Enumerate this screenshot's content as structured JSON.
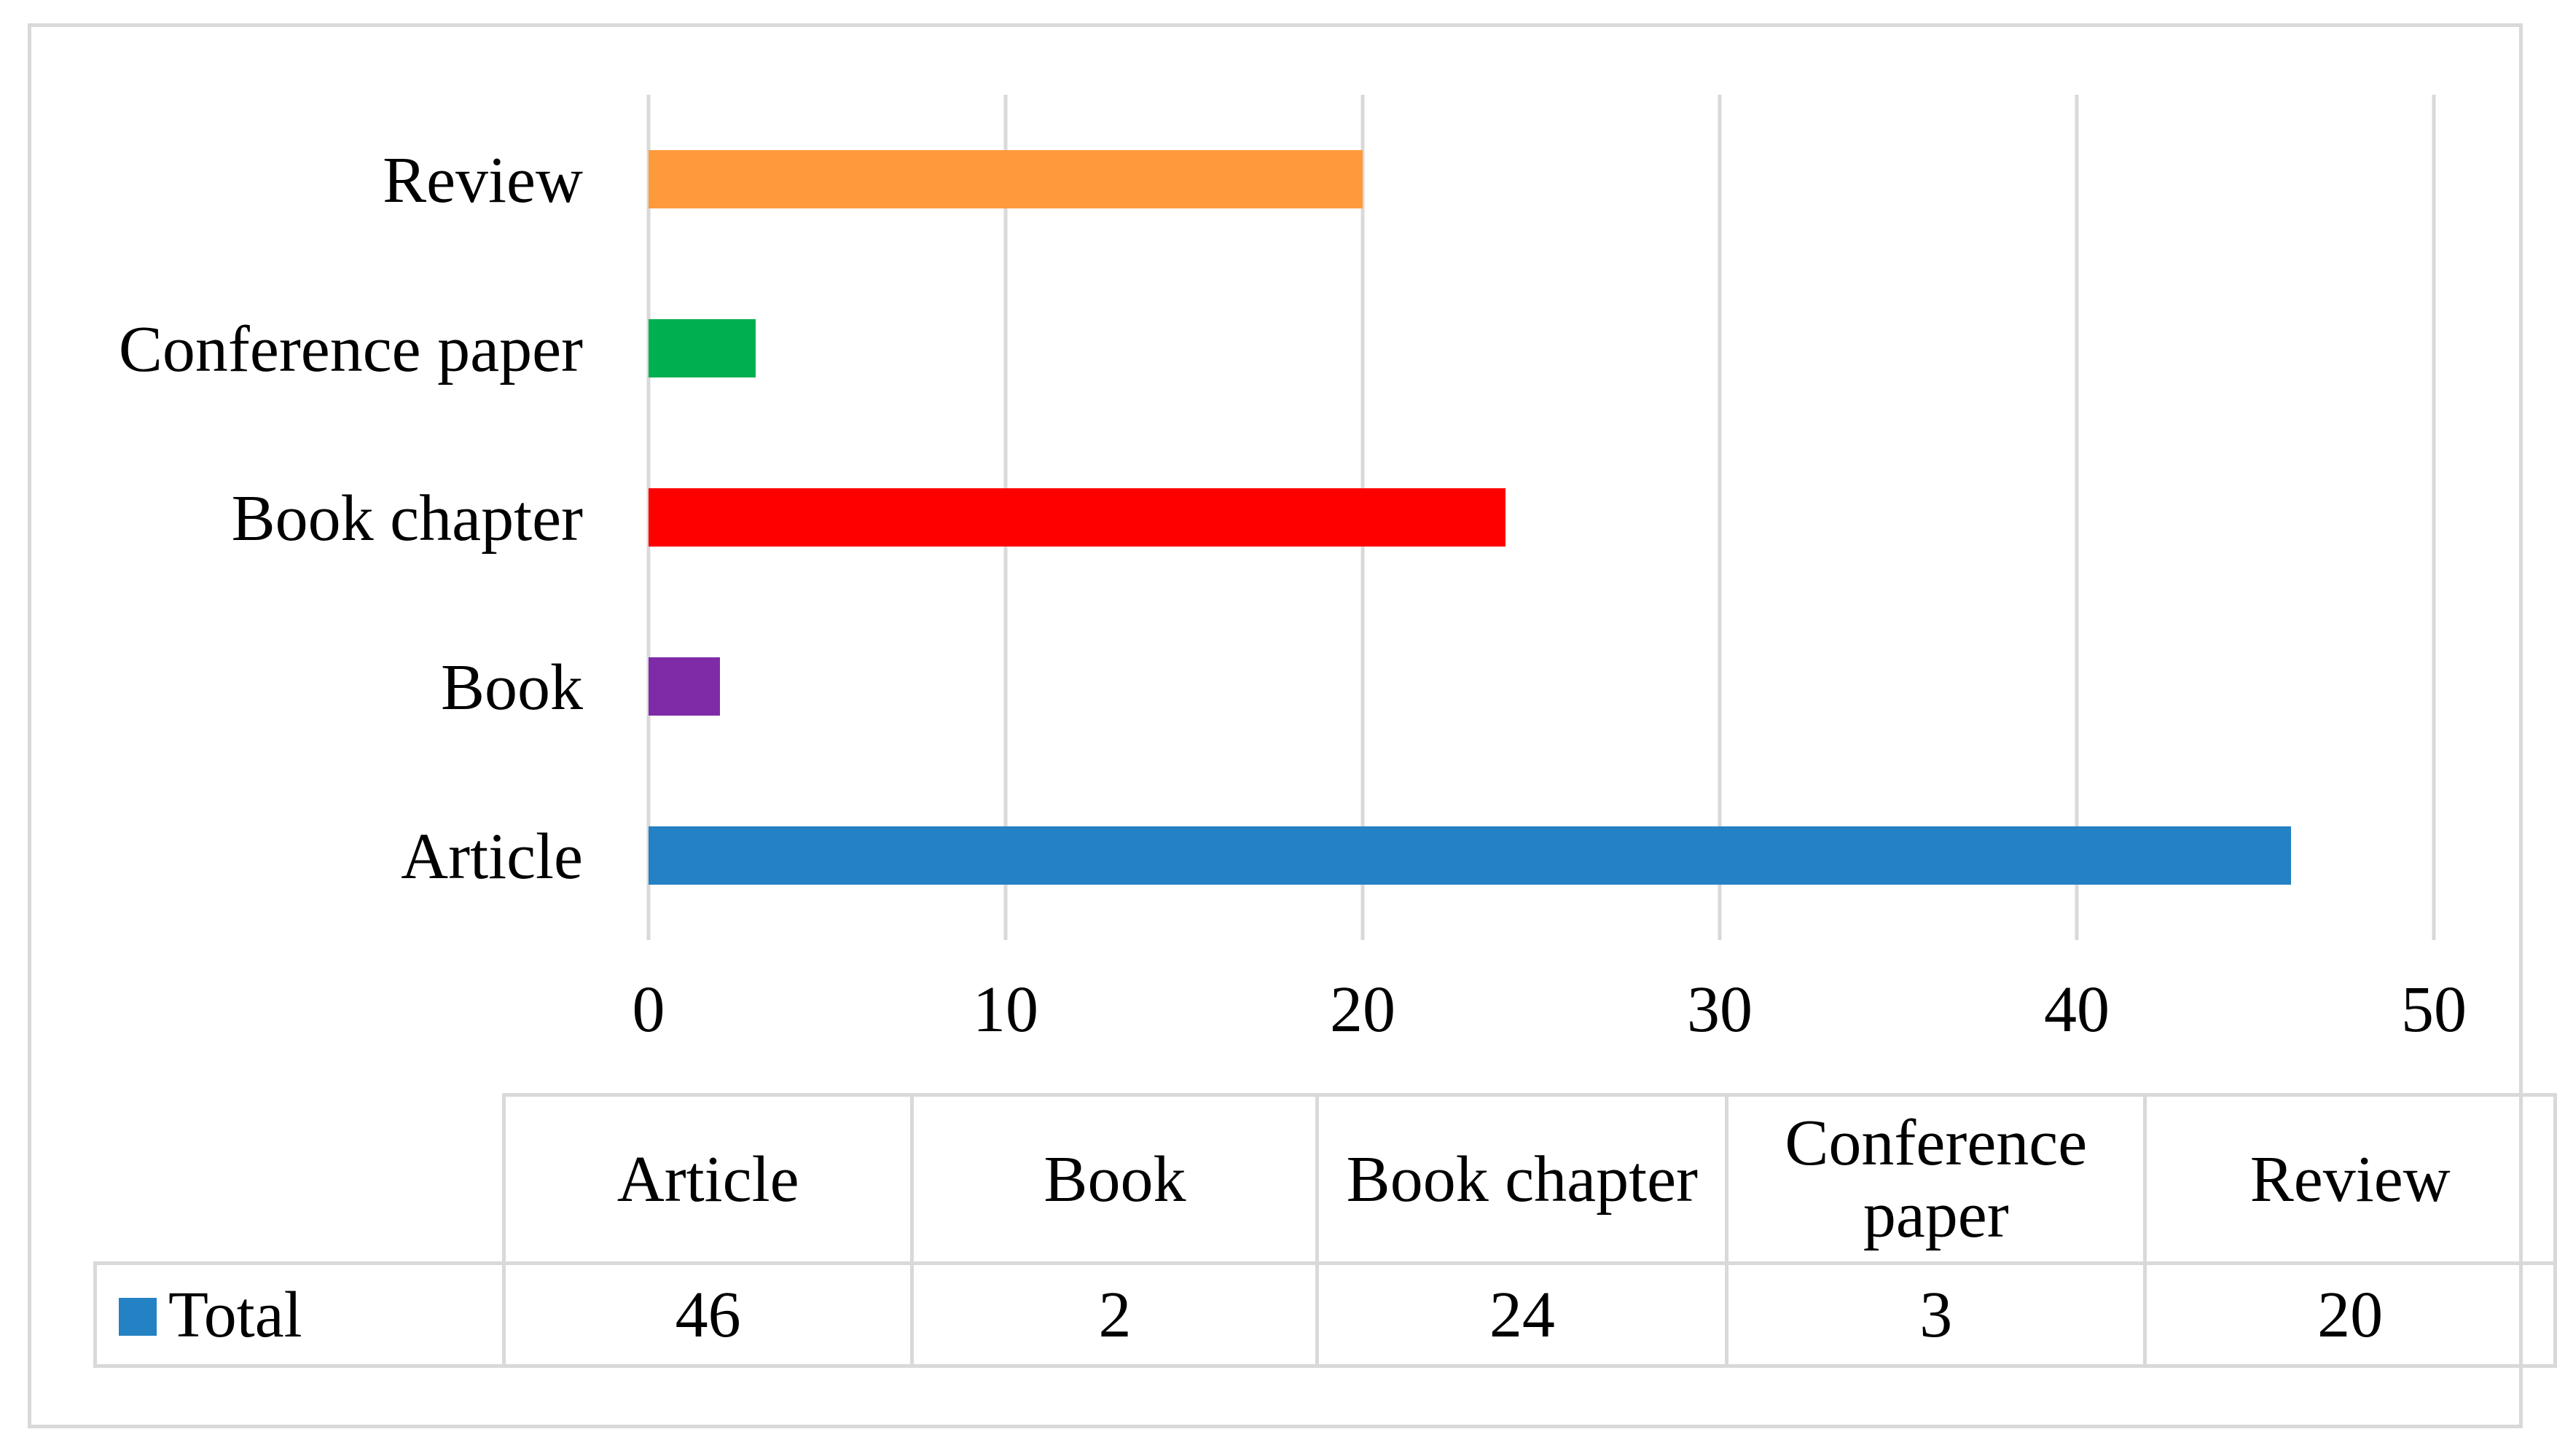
{
  "chart_data": {
    "type": "bar",
    "orientation": "horizontal",
    "categories": [
      "Article",
      "Book",
      "Book chapter",
      "Conference paper",
      "Review"
    ],
    "series": [
      {
        "name": "Total",
        "values": [
          46,
          2,
          24,
          3,
          20
        ],
        "color": "#2481c3"
      }
    ],
    "bar_colors": [
      "#2481c3",
      "#7f2ba8",
      "#ff0000",
      "#00b050",
      "#ff9a3c"
    ],
    "xlim": [
      0,
      50
    ],
    "xticks": [
      0,
      10,
      20,
      30,
      40,
      50
    ],
    "grid": "vertical",
    "data_table": {
      "headers": [
        "Article",
        "Book",
        "Book chapter",
        "Conference paper",
        "Review"
      ],
      "header_lines": [
        [
          "Article"
        ],
        [
          "Book"
        ],
        [
          "Book chapter"
        ],
        [
          "Conference",
          "paper"
        ],
        [
          "Review"
        ]
      ],
      "row_label": "Total",
      "values": [
        "46",
        "2",
        "24",
        "3",
        "20"
      ]
    }
  },
  "colors": {
    "grid": "#d9d9d9",
    "border": "#d9d9d9",
    "legend_swatch": "#2481c3"
  }
}
